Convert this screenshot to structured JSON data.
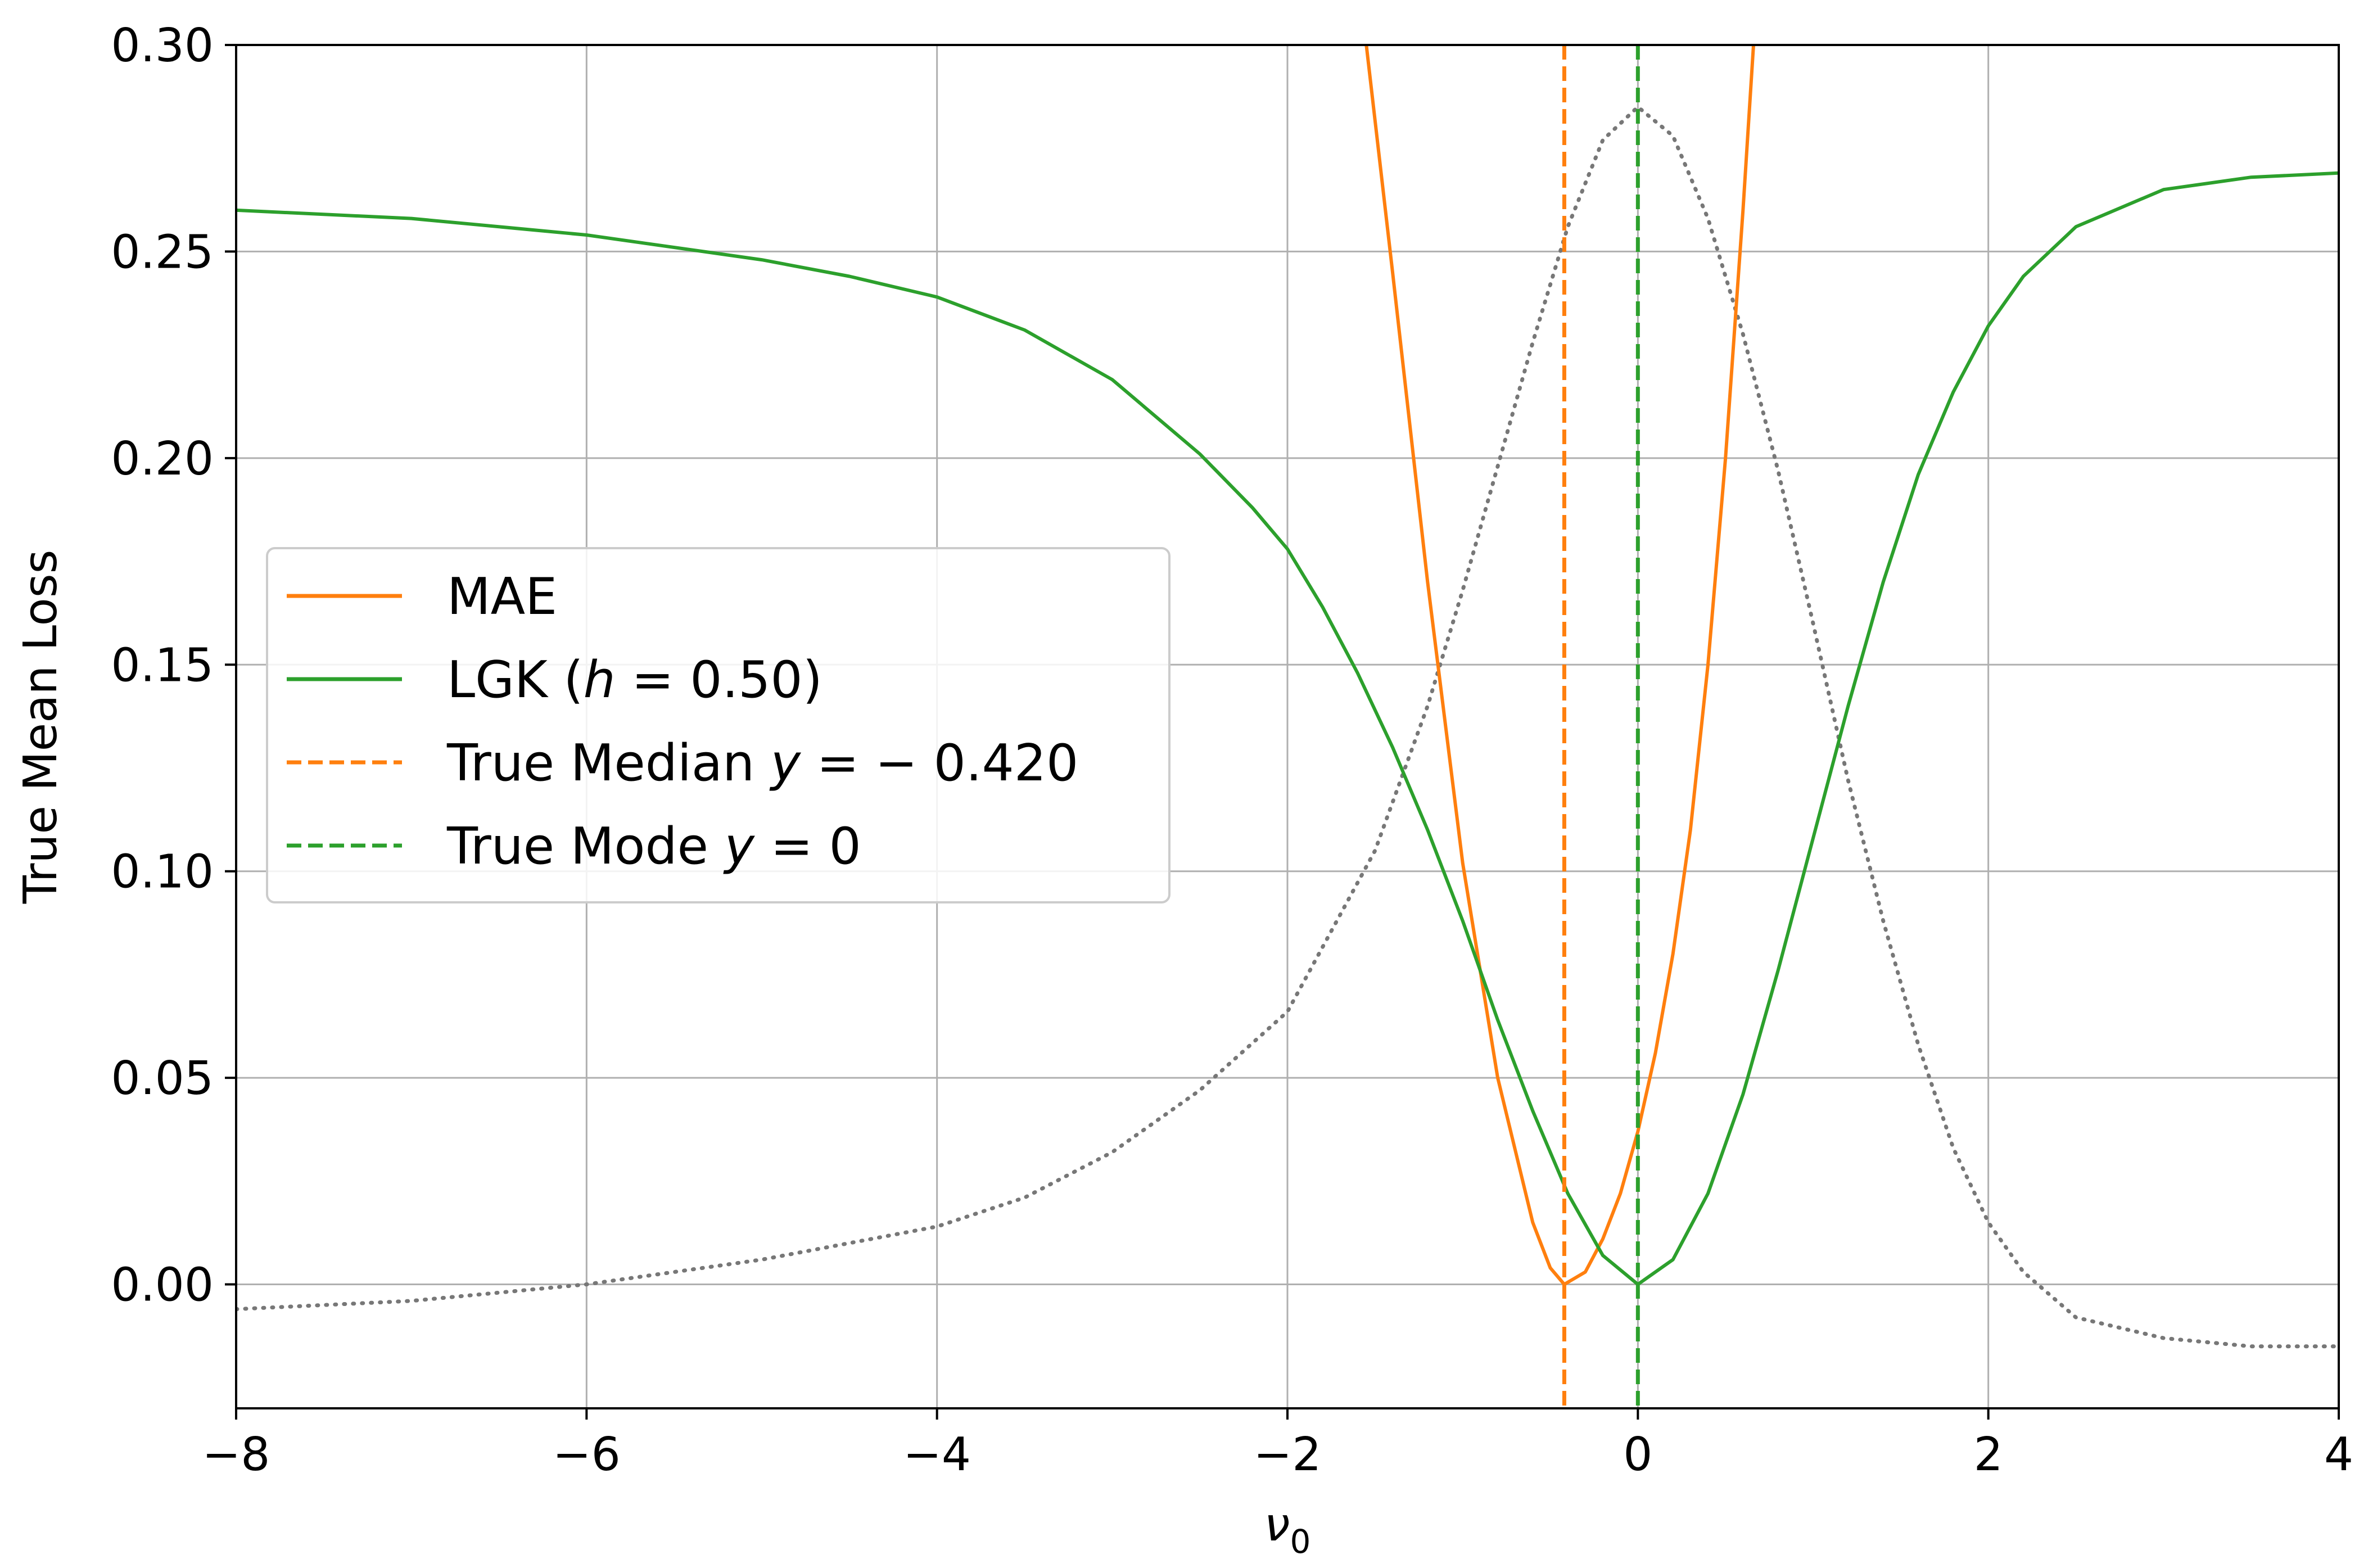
{
  "chart_data": {
    "type": "line",
    "xlabel": "ν0",
    "xlabel_main": "ν",
    "xlabel_sub": "0",
    "ylabel": "True Mean Loss",
    "xlim": [
      -8,
      4
    ],
    "ylim": [
      -0.03,
      0.3
    ],
    "xticks": [
      -8,
      -6,
      -4,
      -2,
      0,
      2,
      4
    ],
    "xtick_labels": [
      "−8",
      "−6",
      "−4",
      "−2",
      "0",
      "2",
      "4"
    ],
    "yticks": [
      0.0,
      0.05,
      0.1,
      0.15,
      0.2,
      0.25,
      0.3
    ],
    "ytick_labels": [
      "0.00",
      "0.05",
      "0.10",
      "0.15",
      "0.20",
      "0.25",
      "0.30"
    ],
    "grid": true,
    "legend_position": "center-left",
    "series": [
      {
        "name": "MAE",
        "kind": "solid",
        "color": "#ff7f0e",
        "x": [
          -1.55,
          -1.4,
          -1.2,
          -1.0,
          -0.8,
          -0.6,
          -0.5,
          -0.42,
          -0.3,
          -0.2,
          -0.1,
          0.0,
          0.1,
          0.2,
          0.3,
          0.4,
          0.5,
          0.6,
          0.66
        ],
        "y": [
          0.3,
          0.245,
          0.17,
          0.102,
          0.05,
          0.015,
          0.004,
          0.0,
          0.003,
          0.011,
          0.022,
          0.037,
          0.056,
          0.08,
          0.11,
          0.15,
          0.2,
          0.26,
          0.3
        ]
      },
      {
        "name": "LGK (h = 0.50)",
        "legend_prefix": "LGK (",
        "legend_italic": "h",
        "legend_suffix": " = 0.50)",
        "kind": "solid",
        "color": "#2ca02c",
        "x": [
          -8,
          -7,
          -6,
          -5,
          -4.5,
          -4,
          -3.5,
          -3,
          -2.5,
          -2.2,
          -2,
          -1.8,
          -1.6,
          -1.4,
          -1.2,
          -1.0,
          -0.8,
          -0.6,
          -0.4,
          -0.2,
          0.0,
          0.2,
          0.4,
          0.6,
          0.8,
          1.0,
          1.2,
          1.4,
          1.6,
          1.8,
          2.0,
          2.2,
          2.5,
          3.0,
          3.5,
          4.0
        ],
        "y": [
          0.26,
          0.258,
          0.254,
          0.248,
          0.244,
          0.239,
          0.231,
          0.219,
          0.201,
          0.188,
          0.178,
          0.164,
          0.148,
          0.13,
          0.11,
          0.088,
          0.064,
          0.042,
          0.022,
          0.007,
          0.0,
          0.006,
          0.022,
          0.046,
          0.076,
          0.108,
          0.14,
          0.17,
          0.196,
          0.216,
          0.232,
          0.244,
          0.256,
          0.265,
          0.268,
          0.269
        ]
      },
      {
        "name": "True Median y = −0.420",
        "legend_prefix": "True Median ",
        "legend_italic": "y",
        "legend_suffix": " = − 0.420",
        "kind": "vline",
        "color": "#ff7f0e",
        "x_value": -0.42
      },
      {
        "name": "True Mode y = 0",
        "legend_prefix": "True Mode ",
        "legend_italic": "y",
        "legend_suffix": " = 0",
        "kind": "vline",
        "color": "#2ca02c",
        "x_value": 0.0
      },
      {
        "name": "",
        "kind": "dotted",
        "color": "#777777",
        "in_legend": false,
        "x": [
          -8,
          -7,
          -6,
          -5,
          -4,
          -3.5,
          -3,
          -2.5,
          -2,
          -1.5,
          -1.2,
          -1.0,
          -0.8,
          -0.6,
          -0.4,
          -0.2,
          0.0,
          0.2,
          0.4,
          0.6,
          0.8,
          1.0,
          1.2,
          1.4,
          1.6,
          1.8,
          2.0,
          2.2,
          2.5,
          3.0,
          3.5,
          4.0
        ],
        "y": [
          -0.006,
          -0.004,
          0.0,
          0.006,
          0.014,
          0.021,
          0.032,
          0.047,
          0.066,
          0.105,
          0.14,
          0.168,
          0.198,
          0.228,
          0.256,
          0.277,
          0.285,
          0.278,
          0.258,
          0.23,
          0.197,
          0.16,
          0.122,
          0.088,
          0.058,
          0.033,
          0.015,
          0.003,
          -0.008,
          -0.013,
          -0.015,
          -0.015
        ]
      }
    ]
  }
}
